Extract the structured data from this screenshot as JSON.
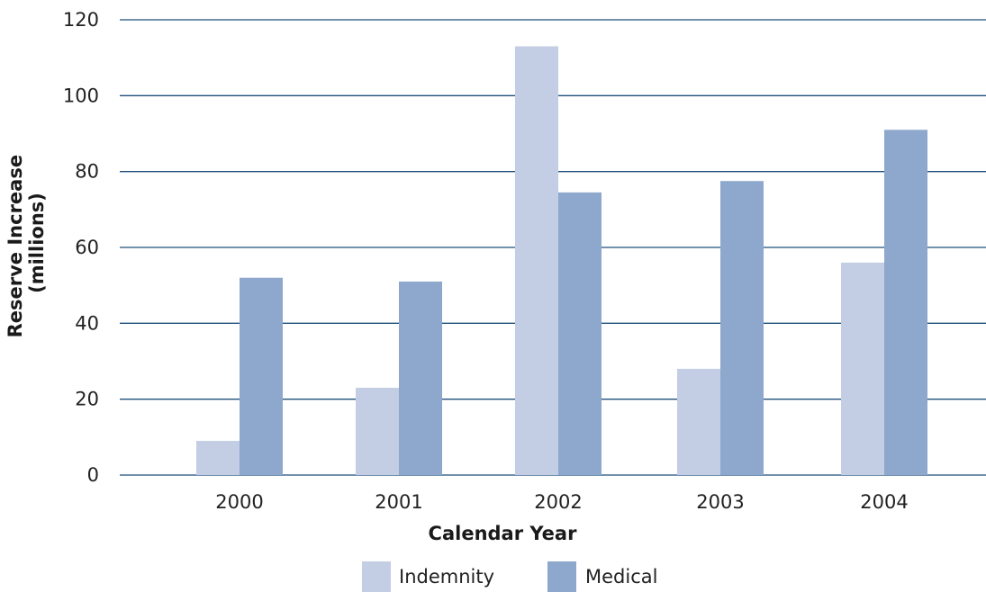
{
  "chart_data": {
    "type": "bar",
    "xlabel": "Calendar Year",
    "ylabel": [
      "Reserve Increase",
      "(millions)"
    ],
    "categories": [
      "2000",
      "2001",
      "2002",
      "2003",
      "2004"
    ],
    "series": [
      {
        "name": "Indemnity",
        "color": "#c3cde3",
        "values": [
          9,
          23,
          113,
          28,
          56
        ]
      },
      {
        "name": "Medical",
        "color": "#8ea8cd",
        "values": [
          52,
          51,
          74.5,
          77.5,
          91
        ]
      }
    ],
    "ylim": [
      0,
      120
    ],
    "yticks": [
      "0",
      "20",
      "40",
      "60",
      "80",
      "100",
      "120"
    ],
    "grid": true,
    "grid_color": "#1f4f7a",
    "legend_position": "bottom-center"
  }
}
